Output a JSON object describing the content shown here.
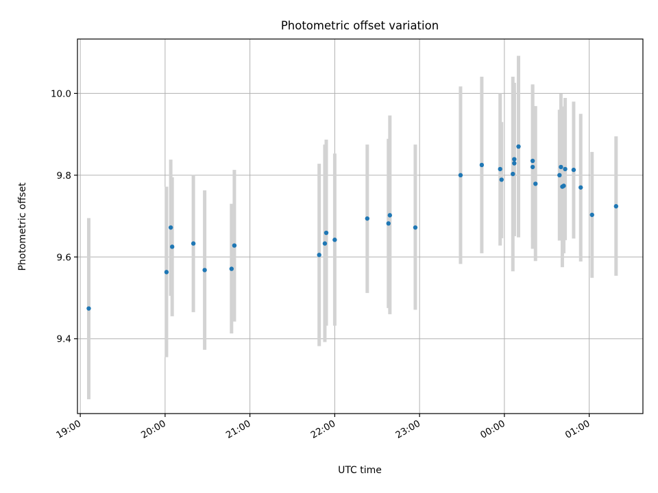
{
  "chart_data": {
    "type": "scatter",
    "title": "Photometric offset variation",
    "xlabel": "UTC time",
    "ylabel": "Photometric offset",
    "x_unit": "UTC time (HH:MM)",
    "xlim": [
      "18:58",
      "01:38"
    ],
    "ylim": [
      9.217,
      10.133
    ],
    "x_ticks": [
      "19:00",
      "20:00",
      "21:00",
      "22:00",
      "23:00",
      "00:00",
      "01:00"
    ],
    "y_ticks": [
      9.4,
      9.6,
      9.8,
      10.0
    ],
    "y_tick_labels": [
      "9.4",
      "9.6",
      "9.8",
      "10.0"
    ],
    "grid": true,
    "colors": {
      "point": "#1f77b4",
      "errorbar": "#d3d3d3",
      "grid": "#b0b0b0"
    },
    "points": [
      {
        "x": "19:06",
        "y": 9.474,
        "ylow": 9.252,
        "yhigh": 9.695
      },
      {
        "x": "20:01",
        "y": 9.563,
        "ylow": 9.355,
        "yhigh": 9.772
      },
      {
        "x": "20:04",
        "y": 9.672,
        "ylow": 9.505,
        "yhigh": 9.838
      },
      {
        "x": "20:05",
        "y": 9.625,
        "ylow": 9.455,
        "yhigh": 9.795
      },
      {
        "x": "20:20",
        "y": 9.633,
        "ylow": 9.465,
        "yhigh": 9.801
      },
      {
        "x": "20:28",
        "y": 9.568,
        "ylow": 9.373,
        "yhigh": 9.763
      },
      {
        "x": "20:47",
        "y": 9.571,
        "ylow": 9.413,
        "yhigh": 9.73
      },
      {
        "x": "20:49",
        "y": 9.628,
        "ylow": 9.442,
        "yhigh": 9.813
      },
      {
        "x": "21:49",
        "y": 9.605,
        "ylow": 9.382,
        "yhigh": 9.828
      },
      {
        "x": "21:53",
        "y": 9.633,
        "ylow": 9.392,
        "yhigh": 9.875
      },
      {
        "x": "21:54",
        "y": 9.659,
        "ylow": 9.432,
        "yhigh": 9.887
      },
      {
        "x": "22:00",
        "y": 9.642,
        "ylow": 9.432,
        "yhigh": 9.853
      },
      {
        "x": "22:23",
        "y": 9.694,
        "ylow": 9.512,
        "yhigh": 9.875
      },
      {
        "x": "22:38",
        "y": 9.682,
        "ylow": 9.475,
        "yhigh": 9.889
      },
      {
        "x": "22:39",
        "y": 9.702,
        "ylow": 9.46,
        "yhigh": 9.946
      },
      {
        "x": "22:57",
        "y": 9.672,
        "ylow": 9.471,
        "yhigh": 9.875
      },
      {
        "x": "23:29",
        "y": 9.8,
        "ylow": 9.583,
        "yhigh": 10.017
      },
      {
        "x": "23:44",
        "y": 9.825,
        "ylow": 9.609,
        "yhigh": 10.041
      },
      {
        "x": "23:57",
        "y": 9.815,
        "ylow": 9.628,
        "yhigh": 10.0
      },
      {
        "x": "23:58",
        "y": 9.789,
        "ylow": 9.646,
        "yhigh": 9.93
      },
      {
        "x": "00:06",
        "y": 9.803,
        "ylow": 9.565,
        "yhigh": 10.041
      },
      {
        "x": "00:07",
        "y": 9.839,
        "ylow": 9.651,
        "yhigh": 10.026
      },
      {
        "x": "00:07",
        "y": 9.829,
        "ylow": 9.651,
        "yhigh": 10.007
      },
      {
        "x": "00:10",
        "y": 9.87,
        "ylow": 9.648,
        "yhigh": 10.092
      },
      {
        "x": "00:20",
        "y": 9.835,
        "ylow": 9.648,
        "yhigh": 10.022
      },
      {
        "x": "00:20",
        "y": 9.82,
        "ylow": 9.62,
        "yhigh": 10.02
      },
      {
        "x": "00:22",
        "y": 9.779,
        "ylow": 9.59,
        "yhigh": 9.969
      },
      {
        "x": "00:39",
        "y": 9.8,
        "ylow": 9.64,
        "yhigh": 9.96
      },
      {
        "x": "00:40",
        "y": 9.82,
        "ylow": 9.641,
        "yhigh": 9.999
      },
      {
        "x": "00:41",
        "y": 9.772,
        "ylow": 9.575,
        "yhigh": 9.968
      },
      {
        "x": "00:42",
        "y": 9.774,
        "ylow": 9.609,
        "yhigh": 9.939
      },
      {
        "x": "00:43",
        "y": 9.815,
        "ylow": 9.641,
        "yhigh": 9.989
      },
      {
        "x": "00:49",
        "y": 9.813,
        "ylow": 9.645,
        "yhigh": 9.98
      },
      {
        "x": "00:54",
        "y": 9.77,
        "ylow": 9.589,
        "yhigh": 9.95
      },
      {
        "x": "01:02",
        "y": 9.703,
        "ylow": 9.549,
        "yhigh": 9.857
      },
      {
        "x": "01:19",
        "y": 9.724,
        "ylow": 9.554,
        "yhigh": 9.895
      }
    ]
  }
}
